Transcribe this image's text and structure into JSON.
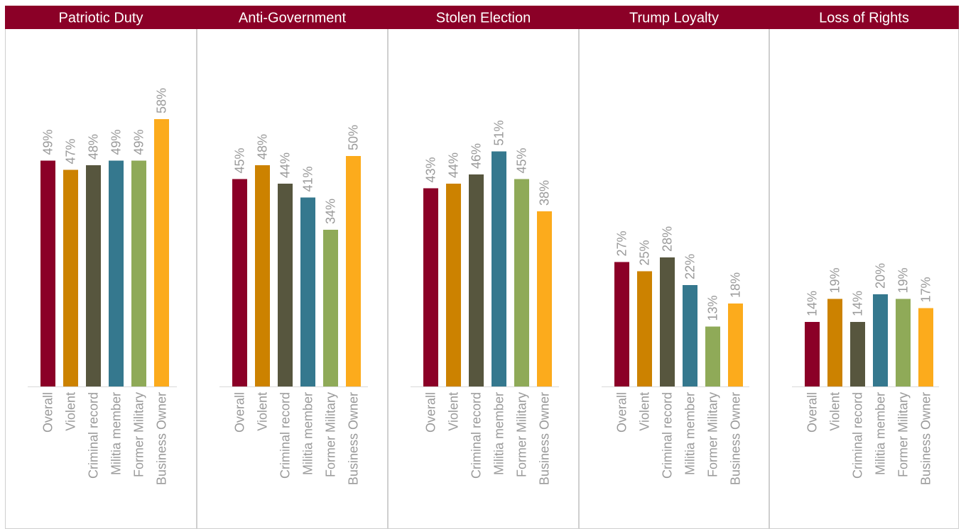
{
  "chart_data": {
    "type": "bar",
    "categories": [
      "Overall",
      "Violent",
      "Criminal record",
      "Militia member",
      "Former Military",
      "Business Owner"
    ],
    "unit": "%",
    "ylim": [
      0,
      60
    ],
    "grid": false,
    "legend": "none",
    "colors": [
      "#8B0027",
      "#CC8200",
      "#57563E",
      "#35788E",
      "#8FAA58",
      "#FCAB1C"
    ],
    "header_color": "#8B0027",
    "header_text_color": "#ffffff",
    "label_color": "#9a9a9a",
    "panel_border_color": "#cfcfcf",
    "panels": [
      {
        "title": "Patriotic Duty",
        "values": [
          49,
          47,
          48,
          49,
          49,
          58
        ]
      },
      {
        "title": "Anti-Government",
        "values": [
          45,
          48,
          44,
          41,
          34,
          50
        ]
      },
      {
        "title": "Stolen Election",
        "values": [
          43,
          44,
          46,
          51,
          45,
          38
        ]
      },
      {
        "title": "Trump Loyalty",
        "values": [
          27,
          25,
          28,
          22,
          13,
          18
        ]
      },
      {
        "title": "Loss of Rights",
        "values": [
          14,
          19,
          14,
          20,
          19,
          17
        ]
      }
    ]
  }
}
